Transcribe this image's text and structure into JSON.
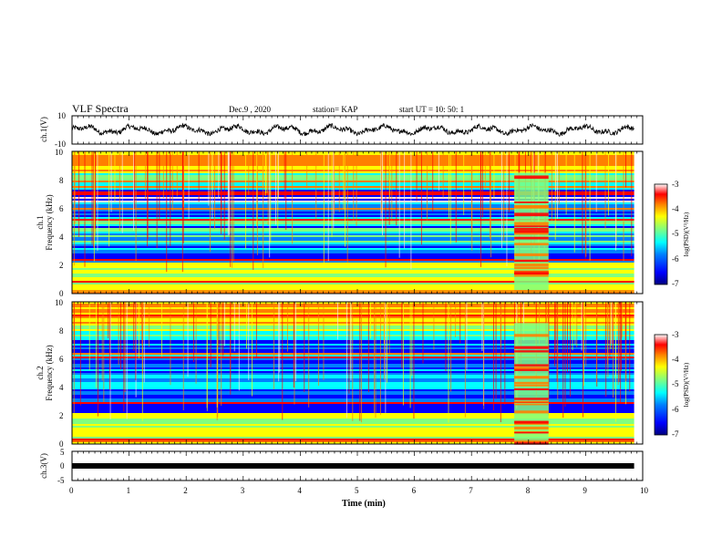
{
  "header": {
    "title": "VLF Spectra",
    "date": "Dec.9 , 2020",
    "station": "station= KAP",
    "start": "start UT = 10: 50: 1"
  },
  "colors": {
    "colormap": [
      "#000080",
      "#0000ff",
      "#0080ff",
      "#00ffff",
      "#80ff80",
      "#ffff00",
      "#ff8000",
      "#ff0000",
      "#ffe0e0",
      "#ffffff"
    ],
    "waveform": "#000000",
    "ch3_bar": "#000000"
  },
  "chart_data": [
    {
      "type": "line",
      "name": "ch1-waveform",
      "ylabel": "ch.1(V)",
      "ylim": [
        -10,
        10
      ],
      "yticks": [
        "10",
        "-10"
      ],
      "xlim": [
        0,
        10
      ],
      "description_values": {
        "mean": 0,
        "amplitude": 3.5
      }
    },
    {
      "type": "heatmap",
      "name": "ch1-spectrogram",
      "ylabel_line1": "ch.1",
      "ylabel_line2": "Frequency (kHz)",
      "ylim": [
        0,
        10
      ],
      "yticks": [
        "0",
        "2",
        "4",
        "6",
        "8",
        "10"
      ],
      "xlim": [
        0,
        9.85
      ],
      "burst_interval_min": [
        7.75,
        8.35
      ],
      "colorbar": {
        "label": "log(PSD)(V²/Hz)",
        "ticks": [
          "-3",
          "-4",
          "-5",
          "-6",
          "-7"
        ],
        "range": [
          -7,
          -3
        ]
      }
    },
    {
      "type": "heatmap",
      "name": "ch2-spectrogram",
      "ylabel_line1": "ch.2",
      "ylabel_line2": "Frequency (kHz)",
      "ylim": [
        0,
        10
      ],
      "yticks": [
        "0",
        "2",
        "4",
        "6",
        "8",
        "10"
      ],
      "xlim": [
        0,
        9.85
      ],
      "burst_interval_min": [
        7.75,
        8.35
      ],
      "colorbar": {
        "label": "log(PSD)(V²/Hz)",
        "ticks": [
          "-3",
          "-4",
          "-5",
          "-6",
          "-7"
        ],
        "range": [
          -7,
          -3
        ]
      }
    },
    {
      "type": "line",
      "name": "ch3-signal",
      "ylabel": "ch.3(V)",
      "ylim": [
        -5,
        5
      ],
      "yticks": [
        "5",
        "0",
        "-5"
      ],
      "xlim": [
        0,
        9.85
      ],
      "level": 0
    }
  ],
  "xaxis": {
    "label": "Time (min)",
    "ticks": [
      "0",
      "1",
      "2",
      "3",
      "4",
      "5",
      "6",
      "7",
      "8",
      "9",
      "10"
    ],
    "range": [
      0,
      10
    ]
  }
}
